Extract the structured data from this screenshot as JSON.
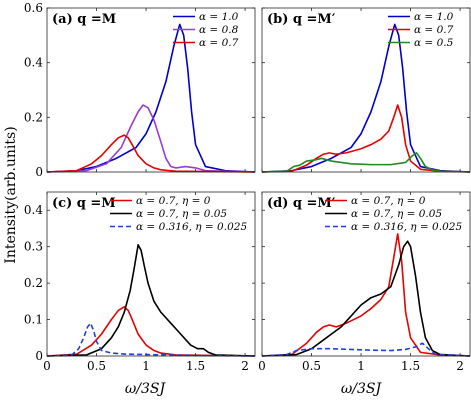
{
  "ylabel": "Intensity(arb.units)",
  "xlabel": "ω/3SJ",
  "chart_data": [
    {
      "type": "line",
      "panel_label": "(a) q =M",
      "xlim": [
        0,
        2.1
      ],
      "ylim": [
        0,
        0.6
      ],
      "xticks": [
        "0",
        "0.5",
        "1",
        "1.5",
        "2"
      ],
      "xtick_values": [
        0,
        0.5,
        1,
        1.5,
        2
      ],
      "yticks": [
        "0",
        "0.2",
        "0.4",
        "0.6"
      ],
      "ytick_values": [
        0,
        0.2,
        0.4,
        0.6
      ],
      "show_xticklabels": false,
      "legend_position": "top-right",
      "series": [
        {
          "name": "α = 1.0",
          "color": "#0000cc",
          "dash": "solid",
          "x": [
            0,
            0.3,
            0.5,
            0.7,
            0.9,
            1.0,
            1.1,
            1.2,
            1.28,
            1.34,
            1.38,
            1.42,
            1.46,
            1.5,
            1.6,
            1.8,
            2.1
          ],
          "y": [
            0,
            0.005,
            0.02,
            0.05,
            0.09,
            0.14,
            0.22,
            0.33,
            0.46,
            0.54,
            0.5,
            0.38,
            0.22,
            0.1,
            0.02,
            0.005,
            0
          ]
        },
        {
          "name": "α = 0.8",
          "color": "#9a3ad6",
          "dash": "solid",
          "x": [
            0,
            0.4,
            0.6,
            0.75,
            0.85,
            0.92,
            0.97,
            1.02,
            1.08,
            1.15,
            1.2,
            1.25,
            1.3,
            1.4,
            1.5,
            1.6,
            2.1
          ],
          "y": [
            0,
            0.005,
            0.03,
            0.09,
            0.17,
            0.22,
            0.245,
            0.235,
            0.19,
            0.11,
            0.05,
            0.02,
            0.015,
            0.02,
            0.015,
            0.005,
            0
          ]
        },
        {
          "name": "α = 0.7",
          "color": "#e60000",
          "dash": "solid",
          "x": [
            0,
            0.3,
            0.45,
            0.55,
            0.65,
            0.72,
            0.78,
            0.82,
            0.86,
            0.92,
            1.0,
            1.08,
            1.15,
            1.3,
            2.1
          ],
          "y": [
            0,
            0.005,
            0.03,
            0.06,
            0.1,
            0.125,
            0.135,
            0.125,
            0.1,
            0.06,
            0.03,
            0.015,
            0.008,
            0.003,
            0
          ]
        }
      ]
    },
    {
      "type": "line",
      "panel_label": "(b) q =M′",
      "xlim": [
        0,
        2.1
      ],
      "ylim": [
        0,
        0.6
      ],
      "xticks": [
        "0",
        "0.5",
        "1",
        "1.5",
        "2"
      ],
      "xtick_values": [
        0,
        0.5,
        1,
        1.5,
        2
      ],
      "yticks": [
        "0",
        "0.2",
        "0.4",
        "0.6"
      ],
      "ytick_values": [
        0,
        0.2,
        0.4,
        0.6
      ],
      "show_xticklabels": false,
      "legend_position": "top-right",
      "series": [
        {
          "name": "α = 1.0",
          "color": "#0000cc",
          "dash": "solid",
          "x": [
            0,
            0.3,
            0.5,
            0.7,
            0.9,
            1.0,
            1.1,
            1.2,
            1.28,
            1.34,
            1.38,
            1.42,
            1.46,
            1.5,
            1.6,
            1.8,
            2.1
          ],
          "y": [
            0,
            0.005,
            0.02,
            0.05,
            0.09,
            0.14,
            0.22,
            0.33,
            0.46,
            0.54,
            0.5,
            0.38,
            0.22,
            0.1,
            0.02,
            0.005,
            0
          ]
        },
        {
          "name": "α = 0.7",
          "color": "#e60000",
          "dash": "solid",
          "x": [
            0,
            0.3,
            0.45,
            0.55,
            0.62,
            0.68,
            0.75,
            0.85,
            1.0,
            1.1,
            1.2,
            1.28,
            1.33,
            1.37,
            1.41,
            1.45,
            1.5,
            1.6,
            1.8,
            2.1
          ],
          "y": [
            0,
            0.003,
            0.025,
            0.05,
            0.065,
            0.07,
            0.065,
            0.07,
            0.085,
            0.1,
            0.12,
            0.15,
            0.2,
            0.245,
            0.2,
            0.1,
            0.04,
            0.01,
            0.003,
            0
          ]
        },
        {
          "name": "α = 0.5",
          "color": "#1f8a1f",
          "dash": "solid",
          "x": [
            0,
            0.25,
            0.32,
            0.38,
            0.45,
            0.55,
            0.6,
            0.7,
            0.9,
            1.1,
            1.3,
            1.45,
            1.52,
            1.56,
            1.6,
            1.65,
            1.72,
            1.8,
            2.1
          ],
          "y": [
            0,
            0.003,
            0.02,
            0.025,
            0.04,
            0.045,
            0.05,
            0.04,
            0.03,
            0.027,
            0.027,
            0.035,
            0.06,
            0.07,
            0.05,
            0.02,
            0.008,
            0.003,
            0
          ]
        }
      ]
    },
    {
      "type": "line",
      "panel_label": "(c) q =M",
      "xlim": [
        0,
        2.1
      ],
      "ylim": [
        0,
        0.45
      ],
      "xticks": [
        "0",
        "0.5",
        "1",
        "1.5",
        "2"
      ],
      "xtick_values": [
        0,
        0.5,
        1,
        1.5,
        2
      ],
      "yticks": [
        "0",
        "0.1",
        "0.2",
        "0.3",
        "0.4"
      ],
      "ytick_values": [
        0,
        0.1,
        0.2,
        0.3,
        0.4
      ],
      "show_xticklabels": true,
      "legend_position": "top-right",
      "series": [
        {
          "name": "α = 0.7, η = 0",
          "color": "#e60000",
          "dash": "solid",
          "x": [
            0,
            0.3,
            0.45,
            0.55,
            0.65,
            0.72,
            0.78,
            0.82,
            0.86,
            0.92,
            1.0,
            1.08,
            1.15,
            1.3,
            2.1
          ],
          "y": [
            0,
            0.005,
            0.03,
            0.06,
            0.1,
            0.125,
            0.135,
            0.125,
            0.1,
            0.06,
            0.03,
            0.015,
            0.008,
            0.003,
            0
          ]
        },
        {
          "name": "α = 0.7, η = 0.05",
          "color": "#000000",
          "dash": "solid",
          "x": [
            0,
            0.4,
            0.55,
            0.65,
            0.72,
            0.78,
            0.84,
            0.88,
            0.92,
            0.95,
            0.98,
            1.02,
            1.08,
            1.15,
            1.25,
            1.35,
            1.45,
            1.52,
            1.58,
            1.63,
            1.7,
            2.1
          ],
          "y": [
            0,
            0.003,
            0.02,
            0.05,
            0.08,
            0.12,
            0.18,
            0.24,
            0.305,
            0.29,
            0.25,
            0.2,
            0.15,
            0.12,
            0.09,
            0.06,
            0.03,
            0.02,
            0.02,
            0.01,
            0.003,
            0
          ]
        },
        {
          "name": "α = 0.316, η = 0.025",
          "color": "#1f3fd6",
          "dash": "dashed",
          "x": [
            0,
            0.25,
            0.32,
            0.37,
            0.41,
            0.44,
            0.47,
            0.5,
            0.55,
            0.65,
            0.8,
            1.0,
            1.2,
            1.4,
            1.6,
            2.1
          ],
          "y": [
            0,
            0.003,
            0.02,
            0.05,
            0.08,
            0.09,
            0.07,
            0.04,
            0.015,
            0.008,
            0.005,
            0.004,
            0.003,
            0.002,
            0.001,
            0
          ]
        }
      ]
    },
    {
      "type": "line",
      "panel_label": "(d) q =M′",
      "xlim": [
        0,
        2.1
      ],
      "ylim": [
        0,
        0.45
      ],
      "xticks": [
        "0",
        "0.5",
        "1",
        "1.5",
        "2"
      ],
      "xtick_values": [
        0,
        0.5,
        1,
        1.5,
        2
      ],
      "yticks": [
        "0",
        "0.1",
        "0.2",
        "0.3",
        "0.4"
      ],
      "ytick_values": [
        0,
        0.1,
        0.2,
        0.3,
        0.4
      ],
      "show_xticklabels": true,
      "legend_position": "top-right",
      "series": [
        {
          "name": "α = 0.7, η = 0",
          "color": "#e60000",
          "dash": "solid",
          "x": [
            0,
            0.3,
            0.45,
            0.55,
            0.62,
            0.68,
            0.75,
            0.85,
            1.0,
            1.1,
            1.2,
            1.28,
            1.33,
            1.37,
            1.41,
            1.45,
            1.5,
            1.6,
            1.8,
            2.1
          ],
          "y": [
            0,
            0.004,
            0.035,
            0.065,
            0.08,
            0.085,
            0.08,
            0.09,
            0.11,
            0.13,
            0.155,
            0.19,
            0.27,
            0.335,
            0.26,
            0.12,
            0.05,
            0.01,
            0.003,
            0
          ]
        },
        {
          "name": "α = 0.7, η = 0.05",
          "color": "#000000",
          "dash": "solid",
          "x": [
            0,
            0.35,
            0.5,
            0.6,
            0.7,
            0.8,
            0.9,
            1.0,
            1.1,
            1.2,
            1.3,
            1.38,
            1.43,
            1.47,
            1.5,
            1.55,
            1.6,
            1.65,
            1.72,
            1.8,
            2.1
          ],
          "y": [
            0,
            0.004,
            0.02,
            0.04,
            0.06,
            0.08,
            0.11,
            0.14,
            0.16,
            0.17,
            0.19,
            0.25,
            0.3,
            0.315,
            0.3,
            0.22,
            0.12,
            0.05,
            0.015,
            0.004,
            0
          ]
        },
        {
          "name": "α = 0.316, η = 0.025",
          "color": "#1f3fd6",
          "dash": "dashed",
          "x": [
            0,
            0.25,
            0.35,
            0.5,
            0.7,
            0.9,
            1.1,
            1.3,
            1.45,
            1.55,
            1.62,
            1.68,
            1.75,
            2.1
          ],
          "y": [
            0,
            0.004,
            0.015,
            0.02,
            0.02,
            0.018,
            0.016,
            0.015,
            0.018,
            0.025,
            0.035,
            0.02,
            0.005,
            0
          ]
        }
      ]
    }
  ]
}
